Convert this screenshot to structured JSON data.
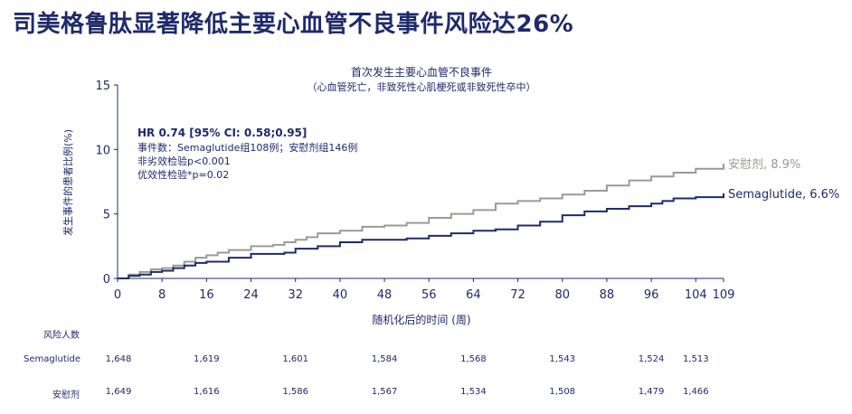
{
  "title": "司美格鲁肽显著降低主要心血管不良事件风险达26%",
  "chart_data": {
    "type": "line",
    "title": "首次发生主要心血管不良事件",
    "subtitle": "（心血管死亡，非致死性心肌梗死或非致死性卒中）",
    "xlabel": "随机化后的时间 (周)",
    "ylabel": "发生事件的患者比例(%)",
    "xlim": [
      0,
      109
    ],
    "ylim": [
      0,
      15
    ],
    "xticks": [
      0,
      8,
      16,
      24,
      32,
      40,
      48,
      56,
      64,
      72,
      80,
      88,
      96,
      104,
      109
    ],
    "yticks": [
      0,
      5,
      10,
      15
    ],
    "grid": false,
    "annotation": {
      "hr": "HR 0.74 [95% CI: 0.58;0.95]",
      "events": "事件数：Semaglutide组108例；安慰剂组146例",
      "noninferiority": "非劣效检验p<0.001",
      "superiority": "优效性检验*p=0.02"
    },
    "series": [
      {
        "name": "安慰剂",
        "end_label": "安慰剂, 8.9%",
        "color": "#9a9a96",
        "x": [
          0,
          2,
          4,
          6,
          8,
          10,
          12,
          14,
          16,
          18,
          20,
          24,
          28,
          30,
          32,
          34,
          36,
          40,
          44,
          48,
          52,
          56,
          60,
          64,
          68,
          72,
          76,
          80,
          84,
          88,
          92,
          96,
          100,
          104,
          109
        ],
        "y": [
          0,
          0.3,
          0.5,
          0.7,
          0.8,
          1.0,
          1.3,
          1.6,
          1.8,
          2.0,
          2.2,
          2.5,
          2.6,
          2.8,
          3.0,
          3.2,
          3.5,
          3.7,
          4.0,
          4.1,
          4.3,
          4.7,
          5.0,
          5.3,
          5.8,
          6.0,
          6.2,
          6.5,
          6.8,
          7.2,
          7.6,
          7.9,
          8.2,
          8.5,
          8.9
        ]
      },
      {
        "name": "Semaglutide",
        "end_label": "Semaglutide, 6.6%",
        "color": "#1f2a6b",
        "x": [
          0,
          2,
          4,
          6,
          8,
          10,
          12,
          14,
          16,
          20,
          24,
          30,
          32,
          36,
          40,
          44,
          48,
          52,
          56,
          60,
          64,
          68,
          72,
          76,
          80,
          84,
          88,
          92,
          96,
          98,
          100,
          104,
          109
        ],
        "y": [
          0,
          0.2,
          0.3,
          0.5,
          0.6,
          0.8,
          1.0,
          1.2,
          1.3,
          1.6,
          1.9,
          2.0,
          2.3,
          2.5,
          2.8,
          3.0,
          3.0,
          3.1,
          3.3,
          3.5,
          3.7,
          3.8,
          4.1,
          4.4,
          4.9,
          5.2,
          5.4,
          5.6,
          5.8,
          6.0,
          6.2,
          6.3,
          6.6
        ]
      }
    ]
  },
  "risk_table": {
    "header": "风险人数",
    "weeks": [
      0,
      16,
      32,
      48,
      64,
      80,
      96,
      104
    ],
    "rows": [
      {
        "label": "Semaglutide",
        "values": [
          "1,648",
          "1,619",
          "1,601",
          "1,584",
          "1,568",
          "1,543",
          "1,524",
          "1,513"
        ]
      },
      {
        "label": "安慰剂",
        "values": [
          "1,649",
          "1,616",
          "1,586",
          "1,567",
          "1,534",
          "1,508",
          "1,479",
          "1,466"
        ]
      }
    ]
  }
}
